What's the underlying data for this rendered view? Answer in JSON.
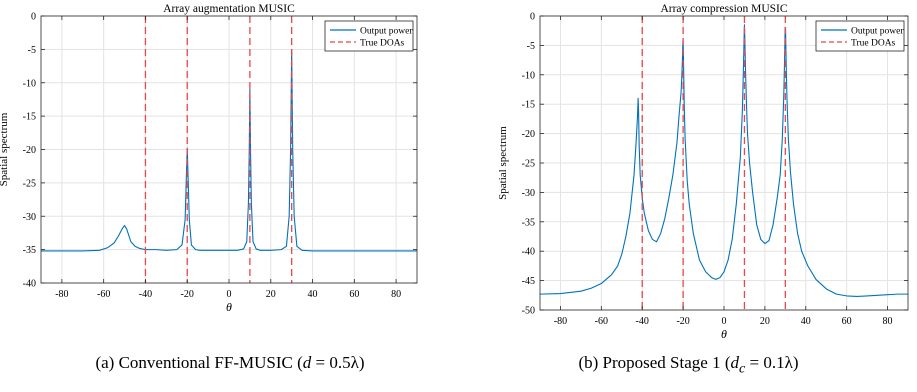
{
  "chart_data": [
    {
      "type": "line",
      "title": "Array augmentation MUSIC",
      "xlabel": "θ",
      "ylabel": "Spatial spectrum",
      "xlim": [
        -90,
        90
      ],
      "ylim": [
        -40,
        0
      ],
      "xticks": [
        -80,
        -60,
        -40,
        -20,
        0,
        20,
        40,
        60,
        80
      ],
      "yticks": [
        0,
        -5,
        -10,
        -15,
        -20,
        -25,
        -30,
        -35,
        -40
      ],
      "grid": true,
      "legend": "top-right",
      "series": [
        {
          "name": "Output power",
          "style": "solid",
          "color": "#0072BD",
          "x": [
            -90,
            -70,
            -62,
            -58,
            -55,
            -53,
            -51,
            -50,
            -49,
            -47,
            -45,
            -43,
            -40,
            -35,
            -30,
            -25,
            -22.5,
            -21,
            -20.5,
            -20,
            -19.5,
            -19,
            -18,
            -16,
            -14,
            -10,
            -5,
            0,
            4,
            7,
            8.5,
            9.3,
            9.7,
            10,
            10.3,
            10.7,
            11.5,
            13,
            15,
            20,
            25,
            27.5,
            28.8,
            29.5,
            30,
            30.5,
            31.2,
            32.5,
            35,
            40,
            50,
            60,
            70,
            80,
            90
          ],
          "y": [
            -35.2,
            -35.2,
            -35.1,
            -34.7,
            -34.0,
            -33.0,
            -31.8,
            -31.4,
            -31.9,
            -33.8,
            -34.5,
            -34.8,
            -35.0,
            -35.0,
            -35.1,
            -35.0,
            -34.3,
            -30.5,
            -25.0,
            -19.8,
            -25.0,
            -30.5,
            -34.3,
            -35.0,
            -35.1,
            -35.1,
            -35.1,
            -35.1,
            -35.1,
            -34.9,
            -33.8,
            -28.0,
            -20.0,
            -11.0,
            -20.0,
            -28.0,
            -33.8,
            -34.9,
            -35.1,
            -35.1,
            -35.0,
            -34.5,
            -30.0,
            -20.0,
            -5.0,
            -20.0,
            -30.0,
            -34.5,
            -35.1,
            -35.2,
            -35.2,
            -35.2,
            -35.2,
            -35.2,
            -35.2
          ]
        },
        {
          "name": "True DOAs",
          "style": "dashed",
          "color": "#E8474B",
          "vlines": [
            -40,
            -20,
            10,
            30
          ]
        }
      ],
      "caption_prefix": "(a) Conventional FF-MUSIC (",
      "caption_math": "d",
      "caption_suffix": " = 0.5λ)"
    },
    {
      "type": "line",
      "title": "Array compression MUSIC",
      "xlabel": "θ",
      "ylabel": "Spatial spectrum",
      "xlim": [
        -90,
        90
      ],
      "ylim": [
        -50,
        0
      ],
      "xticks": [
        -80,
        -60,
        -40,
        -20,
        0,
        20,
        40,
        60,
        80
      ],
      "yticks": [
        0,
        -5,
        -10,
        -15,
        -20,
        -25,
        -30,
        -35,
        -40,
        -45,
        -50
      ],
      "grid": true,
      "legend": "top-right",
      "series": [
        {
          "name": "Output power",
          "style": "solid",
          "color": "#0072BD",
          "x": [
            -90,
            -80,
            -70,
            -65,
            -60,
            -55,
            -52,
            -50,
            -48,
            -46,
            -44,
            -43,
            -42.3,
            -42,
            -41.8,
            -41.5,
            -41,
            -40,
            -39,
            -38,
            -37,
            -35,
            -33,
            -31,
            -29,
            -27,
            -25,
            -23,
            -22,
            -21,
            -20.6,
            -20.3,
            -20.1,
            -19.9,
            -19.7,
            -19.4,
            -19,
            -18,
            -17,
            -15,
            -12,
            -9,
            -6,
            -4,
            -2,
            0,
            2,
            4,
            6,
            8,
            9,
            9.5,
            9.8,
            10,
            10.2,
            10.5,
            11,
            11.5,
            12.5,
            14,
            16,
            18,
            20,
            22,
            24,
            26,
            27.5,
            28.5,
            29.2,
            29.6,
            29.9,
            30.1,
            30.4,
            30.8,
            31.5,
            32.5,
            34,
            36,
            38,
            41,
            45,
            50,
            55,
            60,
            65,
            70,
            75,
            80,
            85,
            90
          ],
          "y": [
            -47.3,
            -47.2,
            -46.8,
            -46.3,
            -45.5,
            -44.0,
            -42.5,
            -40.5,
            -37.5,
            -33.5,
            -27.0,
            -21.5,
            -17.0,
            -14.0,
            -16.0,
            -22.0,
            -27.0,
            -31.0,
            -33.5,
            -35.0,
            -36.5,
            -38.0,
            -38.4,
            -37.0,
            -34.5,
            -31.0,
            -27.0,
            -21.5,
            -17.0,
            -13.0,
            -10.0,
            -7.0,
            -4.2,
            -5.5,
            -10.0,
            -16.0,
            -21.0,
            -28.0,
            -32.0,
            -37.0,
            -41.5,
            -43.5,
            -44.5,
            -44.8,
            -44.5,
            -43.5,
            -41.5,
            -38.0,
            -32.0,
            -24.0,
            -16.0,
            -9.0,
            -4.0,
            -1.5,
            -4.0,
            -9.0,
            -15.0,
            -20.0,
            -25.0,
            -30.0,
            -35.5,
            -38.0,
            -38.7,
            -38.2,
            -35.5,
            -31.0,
            -27.0,
            -21.0,
            -14.0,
            -8.0,
            -2.0,
            -2.0,
            -8.0,
            -14.0,
            -21.0,
            -26.5,
            -32.0,
            -37.0,
            -40.0,
            -42.5,
            -44.8,
            -46.4,
            -47.3,
            -47.6,
            -47.7,
            -47.6,
            -47.5,
            -47.4,
            -47.3,
            -47.3
          ]
        },
        {
          "name": "True DOAs",
          "style": "dashed",
          "color": "#E8474B",
          "vlines": [
            -40,
            -20,
            10,
            30
          ]
        }
      ],
      "caption_prefix": "(b) Proposed Stage 1 (",
      "caption_math": "d",
      "caption_math_sub": "c",
      "caption_suffix": " = 0.1λ)"
    }
  ]
}
